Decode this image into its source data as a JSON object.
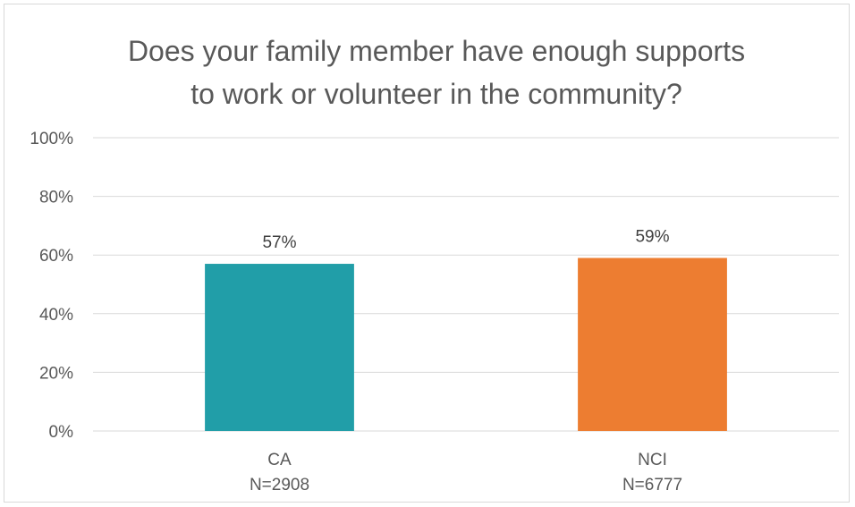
{
  "chart_data": {
    "type": "bar",
    "title_lines": [
      "Does your family member have enough supports",
      "to work or volunteer in the community?"
    ],
    "categories": [
      "CA",
      "NCI"
    ],
    "category_sublabels": [
      "N=2908",
      "N=6777"
    ],
    "values": [
      57,
      59
    ],
    "data_labels": [
      "57%",
      "59%"
    ],
    "colors": [
      "#219EA8",
      "#ED7D31"
    ],
    "yticks": [
      "0%",
      "20%",
      "40%",
      "60%",
      "80%",
      "100%"
    ],
    "ylim": [
      0,
      100
    ],
    "grid": true,
    "legend": "none",
    "xlabel": "",
    "ylabel": ""
  }
}
